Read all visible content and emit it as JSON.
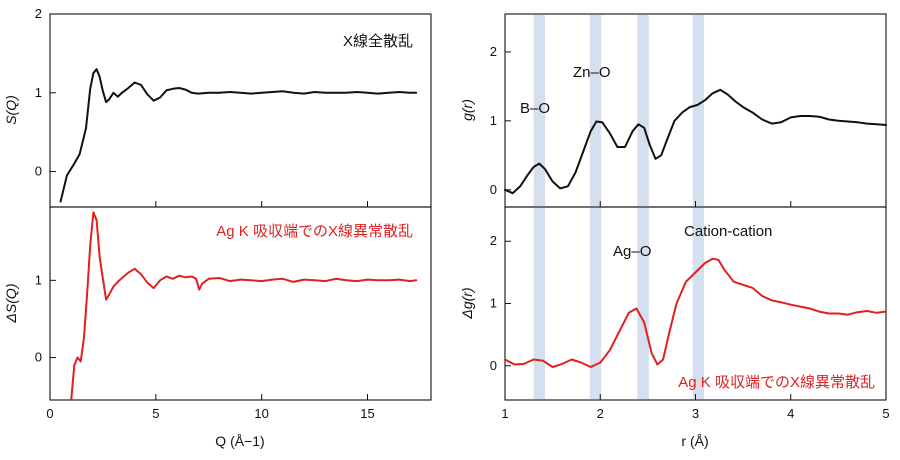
{
  "chart_data": [
    {
      "type": "line",
      "panel": "left-top",
      "xlim": [
        0,
        18
      ],
      "ylim": [
        -0.45,
        2
      ],
      "ylabel": "S(Q)",
      "yticks": [
        0,
        1,
        2
      ],
      "xticks": [
        0,
        5,
        10,
        15
      ],
      "annotation": "X線全散乱",
      "series": [
        {
          "color": "#111111",
          "x": [
            0.5,
            0.8,
            1.1,
            1.4,
            1.7,
            1.9,
            2.05,
            2.2,
            2.35,
            2.5,
            2.65,
            2.8,
            3.0,
            3.2,
            3.4,
            3.7,
            4.0,
            4.3,
            4.6,
            4.9,
            5.2,
            5.5,
            5.8,
            6.1,
            6.4,
            6.7,
            7.0,
            7.5,
            8.0,
            8.5,
            9.0,
            9.5,
            10.0,
            10.5,
            11.0,
            11.5,
            12.0,
            12.5,
            13.0,
            13.5,
            14.0,
            14.5,
            15.0,
            15.5,
            16.0,
            16.5,
            17.0,
            17.3
          ],
          "y": [
            -0.38,
            -0.05,
            0.08,
            0.22,
            0.55,
            1.05,
            1.25,
            1.3,
            1.2,
            1.02,
            0.88,
            0.92,
            1.0,
            0.95,
            1.0,
            1.06,
            1.13,
            1.1,
            0.98,
            0.9,
            0.94,
            1.03,
            1.05,
            1.06,
            1.04,
            1.0,
            0.99,
            1.0,
            1.0,
            1.01,
            1.0,
            0.99,
            1.0,
            1.01,
            1.02,
            1.0,
            0.99,
            1.01,
            1.0,
            1.0,
            1.0,
            1.01,
            1.0,
            0.99,
            1.0,
            1.01,
            1.0,
            1.0
          ]
        }
      ]
    },
    {
      "type": "line",
      "panel": "left-bottom",
      "xlim": [
        0,
        18
      ],
      "ylim": [
        -0.55,
        1.95
      ],
      "xlabel": "Q (Å⁻¹)",
      "ylabel": "ΔS(Q)",
      "yticks": [
        0,
        1
      ],
      "xticks": [
        0,
        5,
        10,
        15
      ],
      "annotation": "Ag K 吸収端でのX線異常散乱",
      "series": [
        {
          "color": "#e02020",
          "x": [
            1.0,
            1.15,
            1.3,
            1.45,
            1.6,
            1.75,
            1.9,
            2.05,
            2.2,
            2.35,
            2.5,
            2.65,
            2.8,
            3.0,
            3.2,
            3.4,
            3.7,
            4.0,
            4.3,
            4.6,
            4.9,
            5.2,
            5.5,
            5.8,
            6.1,
            6.4,
            6.7,
            6.9,
            7.05,
            7.2,
            7.5,
            8.0,
            8.5,
            9.0,
            9.5,
            10.0,
            10.5,
            11.0,
            11.5,
            12.0,
            12.5,
            13.0,
            13.5,
            14.0,
            14.5,
            15.0,
            15.5,
            16.0,
            16.5,
            17.0,
            17.3
          ],
          "y": [
            -0.55,
            -0.1,
            0.0,
            -0.05,
            0.25,
            0.8,
            1.45,
            1.88,
            1.78,
            1.3,
            1.02,
            0.75,
            0.82,
            0.92,
            0.98,
            1.03,
            1.1,
            1.15,
            1.08,
            0.97,
            0.9,
            1.0,
            1.05,
            1.02,
            1.06,
            1.04,
            1.05,
            1.02,
            0.88,
            0.96,
            1.02,
            1.03,
            0.99,
            1.01,
            1.0,
            0.99,
            1.01,
            1.02,
            0.98,
            1.01,
            1.0,
            0.99,
            1.02,
            1.0,
            0.99,
            1.01,
            1.0,
            1.0,
            1.01,
            0.99,
            1.0
          ]
        }
      ]
    },
    {
      "type": "line",
      "panel": "right-top",
      "xlim": [
        1,
        5
      ],
      "ylim": [
        -0.25,
        2.55
      ],
      "ylabel": "g(r)",
      "yticks": [
        0,
        1,
        2
      ],
      "xticks": [
        1,
        2,
        3,
        4,
        5
      ],
      "bands": [
        1.36,
        1.95,
        2.45,
        3.03
      ],
      "annotations": [
        "B–O",
        "Zn–O"
      ],
      "series": [
        {
          "color": "#111111",
          "x": [
            1.0,
            1.08,
            1.16,
            1.24,
            1.3,
            1.36,
            1.42,
            1.5,
            1.58,
            1.66,
            1.74,
            1.82,
            1.9,
            1.96,
            2.02,
            2.1,
            2.18,
            2.26,
            2.34,
            2.4,
            2.46,
            2.52,
            2.58,
            2.64,
            2.7,
            2.78,
            2.86,
            2.94,
            3.02,
            3.1,
            3.18,
            3.26,
            3.34,
            3.42,
            3.5,
            3.6,
            3.7,
            3.8,
            3.9,
            4.0,
            4.1,
            4.2,
            4.3,
            4.4,
            4.5,
            4.6,
            4.7,
            4.8,
            4.9,
            5.0
          ],
          "y": [
            0.0,
            -0.05,
            0.05,
            0.22,
            0.33,
            0.38,
            0.3,
            0.12,
            0.02,
            0.05,
            0.25,
            0.55,
            0.85,
            0.99,
            0.98,
            0.82,
            0.62,
            0.62,
            0.85,
            0.95,
            0.9,
            0.65,
            0.45,
            0.5,
            0.72,
            1.0,
            1.12,
            1.2,
            1.23,
            1.3,
            1.4,
            1.45,
            1.38,
            1.28,
            1.2,
            1.12,
            1.02,
            0.96,
            0.98,
            1.05,
            1.07,
            1.07,
            1.06,
            1.02,
            1.0,
            0.99,
            0.98,
            0.96,
            0.95,
            0.94
          ]
        }
      ]
    },
    {
      "type": "line",
      "panel": "right-bottom",
      "xlim": [
        1,
        5
      ],
      "ylim": [
        -0.55,
        2.55
      ],
      "xlabel": "r (Å)",
      "ylabel": "Δg(r)",
      "yticks": [
        0,
        1,
        2
      ],
      "xticks": [
        1,
        2,
        3,
        4,
        5
      ],
      "xticklabels": [
        "1",
        "2",
        "3",
        "4",
        "5"
      ],
      "bands": [
        1.36,
        1.95,
        2.45,
        3.03
      ],
      "annotations": [
        "Ag–O",
        "Cation-cation"
      ],
      "legend_text": "Ag K 吸収端でのX線異常散乱",
      "series": [
        {
          "color": "#e02020",
          "x": [
            1.0,
            1.1,
            1.2,
            1.3,
            1.4,
            1.5,
            1.6,
            1.7,
            1.8,
            1.9,
            2.0,
            2.1,
            2.2,
            2.3,
            2.38,
            2.46,
            2.54,
            2.6,
            2.66,
            2.72,
            2.8,
            2.9,
            3.0,
            3.1,
            3.18,
            3.24,
            3.3,
            3.4,
            3.5,
            3.6,
            3.7,
            3.8,
            3.9,
            4.0,
            4.1,
            4.2,
            4.3,
            4.4,
            4.5,
            4.6,
            4.7,
            4.8,
            4.9,
            5.0
          ],
          "y": [
            0.1,
            0.02,
            0.03,
            0.1,
            0.08,
            -0.02,
            0.03,
            0.1,
            0.05,
            -0.02,
            0.05,
            0.25,
            0.55,
            0.85,
            0.92,
            0.7,
            0.2,
            0.02,
            0.1,
            0.5,
            1.0,
            1.35,
            1.5,
            1.65,
            1.72,
            1.7,
            1.55,
            1.35,
            1.3,
            1.25,
            1.12,
            1.05,
            1.02,
            0.98,
            0.95,
            0.92,
            0.87,
            0.84,
            0.84,
            0.82,
            0.86,
            0.88,
            0.85,
            0.87
          ]
        }
      ]
    }
  ],
  "labels": {
    "q_axis": "Q (Å−1)",
    "r_axis": "r (Å)",
    "s_axis": "S(Q)",
    "ds_axis": "ΔS(Q)",
    "g_axis": "g(r)",
    "dg_axis": "Δg(r)",
    "total_scattering": "X線全散乱",
    "anomalous_left": "Ag K 吸収端でのX線異常散乱",
    "anomalous_right": "Ag K 吸収端でのX線異常散乱",
    "b_o": "B–O",
    "zn_o": "Zn–O",
    "ag_o": "Ag–O",
    "cation_cation": "Cation-cation"
  },
  "colors": {
    "black_line": "#111111",
    "red_line": "#e02020",
    "band": "#cdd9ec"
  }
}
